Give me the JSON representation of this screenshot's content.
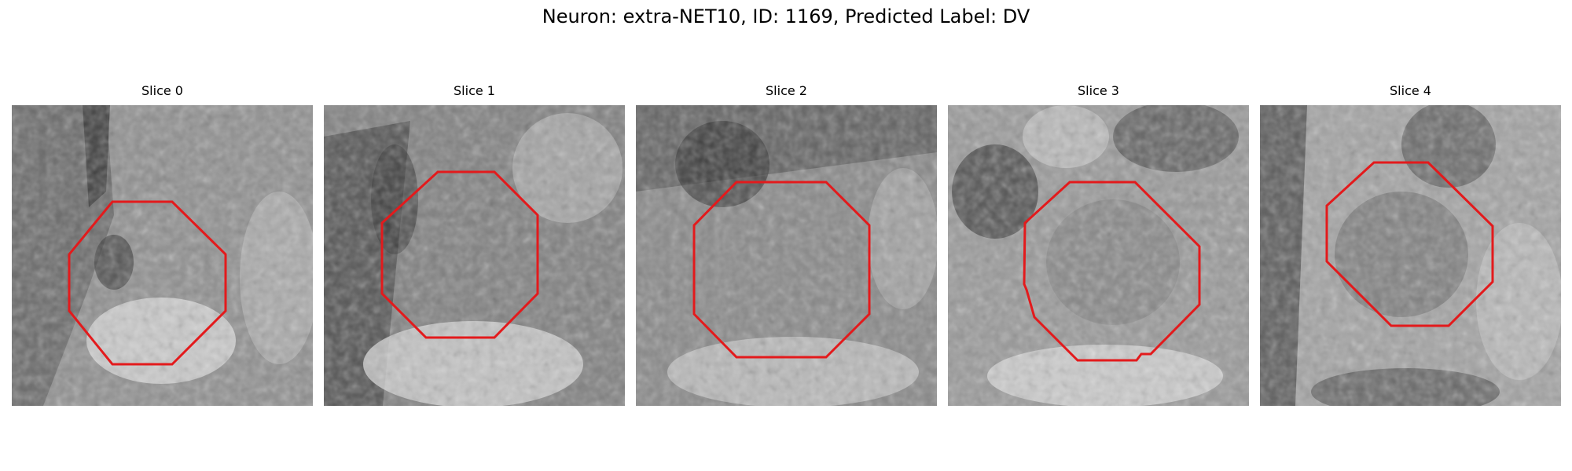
{
  "figure": {
    "title": "Neuron: extra-NET10, ID: 1169, Predicted Label: DV"
  },
  "colors": {
    "outline": "#e31a1c",
    "background": "#ffffff"
  },
  "panels": [
    {
      "title": "Slice 0"
    },
    {
      "title": "Slice 1"
    },
    {
      "title": "Slice 2"
    },
    {
      "title": "Slice 3"
    },
    {
      "title": "Slice 4"
    }
  ]
}
